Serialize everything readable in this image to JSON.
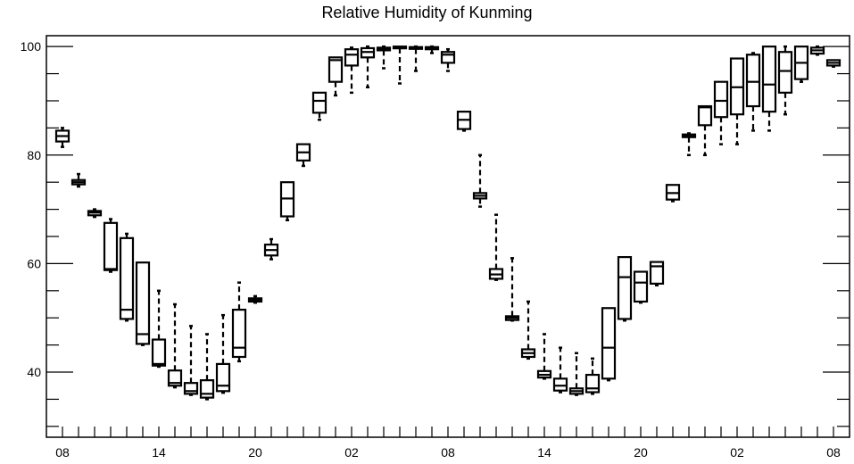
{
  "chart_data": {
    "type": "box",
    "title": "Relative Humidity of Kunming",
    "xlabel": "",
    "ylabel": "",
    "ylim": [
      28,
      102
    ],
    "yticks": [
      40,
      60,
      80,
      100
    ],
    "xticks": [
      {
        "x": 0,
        "label": "08"
      },
      {
        "x": 6,
        "label": "14"
      },
      {
        "x": 12,
        "label": "20"
      },
      {
        "x": 18,
        "label": "02"
      },
      {
        "x": 24,
        "label": "08"
      },
      {
        "x": 30,
        "label": "14"
      },
      {
        "x": 36,
        "label": "20"
      },
      {
        "x": 42,
        "label": "02"
      },
      {
        "x": 48,
        "label": "08"
      }
    ],
    "series": [
      {
        "x": 0,
        "whislo": 81.5,
        "q1": 82.5,
        "med": 83.5,
        "q3": 84.5,
        "whishi": 85.0
      },
      {
        "x": 1,
        "whislo": 74.2,
        "q1": 74.6,
        "med": 75.0,
        "q3": 75.4,
        "whishi": 76.5
      },
      {
        "x": 2,
        "whislo": 68.6,
        "q1": 68.9,
        "med": 69.4,
        "q3": 69.7,
        "whishi": 70.0
      },
      {
        "x": 3,
        "whislo": 58.5,
        "q1": 58.8,
        "med": 59.0,
        "q3": 67.5,
        "whishi": 68.2
      },
      {
        "x": 4,
        "whislo": 49.5,
        "q1": 49.8,
        "med": 51.5,
        "q3": 64.7,
        "whishi": 65.5
      },
      {
        "x": 5,
        "whislo": 45.0,
        "q1": 45.2,
        "med": 47.0,
        "q3": 60.2,
        "whishi": 60.2
      },
      {
        "x": 6,
        "whislo": 41.0,
        "q1": 41.2,
        "med": 41.5,
        "q3": 46.0,
        "whishi": 55.0
      },
      {
        "x": 7,
        "whislo": 37.2,
        "q1": 37.5,
        "med": 38.0,
        "q3": 40.3,
        "whishi": 52.5
      },
      {
        "x": 8,
        "whislo": 35.8,
        "q1": 36.0,
        "med": 36.5,
        "q3": 38.0,
        "whishi": 48.5
      },
      {
        "x": 9,
        "whislo": 35.0,
        "q1": 35.3,
        "med": 36.0,
        "q3": 38.5,
        "whishi": 47.0
      },
      {
        "x": 10,
        "whislo": 36.2,
        "q1": 36.5,
        "med": 37.5,
        "q3": 41.5,
        "whishi": 50.5
      },
      {
        "x": 11,
        "whislo": 42.0,
        "q1": 42.8,
        "med": 44.5,
        "q3": 51.5,
        "whishi": 56.5
      },
      {
        "x": 12,
        "whislo": 52.8,
        "q1": 53.0,
        "med": 53.3,
        "q3": 53.6,
        "whishi": 54.0
      },
      {
        "x": 13,
        "whislo": 60.8,
        "q1": 61.5,
        "med": 62.5,
        "q3": 63.5,
        "whishi": 64.5
      },
      {
        "x": 14,
        "whislo": 68.0,
        "q1": 68.7,
        "med": 72.0,
        "q3": 75.0,
        "whishi": 75.0
      },
      {
        "x": 15,
        "whislo": 78.0,
        "q1": 79.0,
        "med": 80.5,
        "q3": 82.0,
        "whishi": 82.0
      },
      {
        "x": 16,
        "whislo": 86.5,
        "q1": 87.8,
        "med": 90.0,
        "q3": 91.5,
        "whishi": 91.5
      },
      {
        "x": 17,
        "whislo": 91.0,
        "q1": 93.5,
        "med": 97.5,
        "q3": 98.0,
        "whishi": 98.0
      },
      {
        "x": 18,
        "whislo": 91.5,
        "q1": 96.5,
        "med": 98.5,
        "q3": 99.5,
        "whishi": 99.8
      },
      {
        "x": 19,
        "whislo": 92.5,
        "q1": 98.0,
        "med": 99.0,
        "q3": 99.7,
        "whishi": 100.0
      },
      {
        "x": 20,
        "whislo": 96.0,
        "q1": 99.3,
        "med": 99.6,
        "q3": 99.8,
        "whishi": 100.0
      },
      {
        "x": 21,
        "whislo": 93.2,
        "q1": 99.7,
        "med": 99.9,
        "q3": 100.0,
        "whishi": 100.0
      },
      {
        "x": 22,
        "whislo": 95.5,
        "q1": 99.6,
        "med": 99.8,
        "q3": 99.9,
        "whishi": 100.0
      },
      {
        "x": 23,
        "whislo": 98.8,
        "q1": 99.5,
        "med": 99.8,
        "q3": 99.9,
        "whishi": 100.0
      },
      {
        "x": 24,
        "whislo": 95.5,
        "q1": 97.0,
        "med": 98.5,
        "q3": 99.0,
        "whishi": 99.5
      },
      {
        "x": 25,
        "whislo": 84.5,
        "q1": 84.8,
        "med": 86.5,
        "q3": 88.0,
        "whishi": 88.0
      },
      {
        "x": 26,
        "whislo": 70.5,
        "q1": 72.0,
        "med": 72.5,
        "q3": 73.0,
        "whishi": 80.0
      },
      {
        "x": 27,
        "whislo": 57.0,
        "q1": 57.2,
        "med": 58.0,
        "q3": 59.0,
        "whishi": 69.0
      },
      {
        "x": 28,
        "whislo": 49.5,
        "q1": 49.6,
        "med": 50.0,
        "q3": 50.3,
        "whishi": 61.0
      },
      {
        "x": 29,
        "whislo": 42.5,
        "q1": 42.8,
        "med": 43.5,
        "q3": 44.2,
        "whishi": 53.0
      },
      {
        "x": 30,
        "whislo": 38.8,
        "q1": 39.0,
        "med": 39.5,
        "q3": 40.2,
        "whishi": 47.0
      },
      {
        "x": 31,
        "whislo": 36.3,
        "q1": 36.6,
        "med": 37.5,
        "q3": 38.8,
        "whishi": 44.5
      },
      {
        "x": 32,
        "whislo": 35.8,
        "q1": 36.0,
        "med": 36.5,
        "q3": 37.0,
        "whishi": 43.5
      },
      {
        "x": 33,
        "whislo": 36.0,
        "q1": 36.3,
        "med": 37.0,
        "q3": 39.5,
        "whishi": 42.5
      },
      {
        "x": 34,
        "whislo": 38.5,
        "q1": 38.8,
        "med": 44.5,
        "q3": 51.8,
        "whishi": 51.8
      },
      {
        "x": 35,
        "whislo": 49.5,
        "q1": 49.8,
        "med": 57.5,
        "q3": 61.2,
        "whishi": 61.2
      },
      {
        "x": 36,
        "whislo": 52.8,
        "q1": 53.0,
        "med": 56.5,
        "q3": 58.5,
        "whishi": 58.5
      },
      {
        "x": 37,
        "whislo": 56.0,
        "q1": 56.3,
        "med": 59.5,
        "q3": 60.3,
        "whishi": 60.3
      },
      {
        "x": 38,
        "whislo": 71.5,
        "q1": 71.8,
        "med": 73.0,
        "q3": 74.5,
        "whishi": 74.5
      },
      {
        "x": 39,
        "whislo": 80.0,
        "q1": 83.3,
        "med": 83.5,
        "q3": 83.8,
        "whishi": 84.0
      },
      {
        "x": 40,
        "whislo": 80.0,
        "q1": 85.5,
        "med": 88.8,
        "q3": 89.0,
        "whishi": 89.0
      },
      {
        "x": 41,
        "whislo": 82.0,
        "q1": 87.0,
        "med": 90.0,
        "q3": 93.5,
        "whishi": 93.5
      },
      {
        "x": 42,
        "whislo": 82.0,
        "q1": 87.5,
        "med": 92.5,
        "q3": 97.8,
        "whishi": 97.8
      },
      {
        "x": 43,
        "whislo": 84.5,
        "q1": 89.0,
        "med": 93.5,
        "q3": 98.5,
        "whishi": 98.8
      },
      {
        "x": 44,
        "whislo": 84.5,
        "q1": 88.0,
        "med": 93.0,
        "q3": 100.0,
        "whishi": 100.0
      },
      {
        "x": 45,
        "whislo": 87.5,
        "q1": 91.5,
        "med": 95.5,
        "q3": 99.0,
        "whishi": 100.0
      },
      {
        "x": 46,
        "whislo": 93.5,
        "q1": 94.0,
        "med": 97.0,
        "q3": 100.0,
        "whishi": 100.0
      },
      {
        "x": 47,
        "whislo": 98.5,
        "q1": 98.7,
        "med": 99.3,
        "q3": 99.8,
        "whishi": 100.0
      },
      {
        "x": 48,
        "whislo": 96.3,
        "q1": 96.5,
        "med": 97.0,
        "q3": 97.5,
        "whishi": 97.5
      }
    ]
  }
}
